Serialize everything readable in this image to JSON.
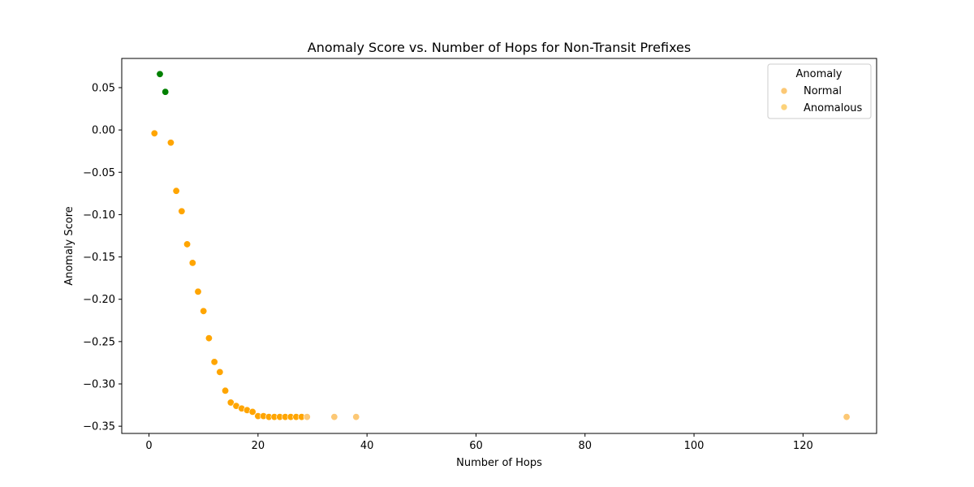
{
  "chart_data": {
    "type": "scatter",
    "title": "Anomaly Score vs. Number of Hops for Non-Transit Prefixes",
    "xlabel": "Number of Hops",
    "ylabel": "Anomaly Score",
    "xlim": [
      -5,
      133.5
    ],
    "ylim": [
      -0.3585,
      0.0845
    ],
    "x_ticks": [
      0,
      20,
      40,
      60,
      80,
      100,
      120
    ],
    "y_ticks": [
      0.05,
      0.0,
      -0.05,
      -0.1,
      -0.15,
      -0.2,
      -0.25,
      -0.3,
      -0.35
    ],
    "x_tick_labels": [
      "0",
      "20",
      "40",
      "60",
      "80",
      "100",
      "120"
    ],
    "y_tick_labels": [
      "0.05",
      "0.00",
      "−0.05",
      "−0.10",
      "−0.15",
      "−0.20",
      "−0.25",
      "−0.30",
      "−0.35"
    ],
    "grid": false,
    "legend": {
      "title": "Anomaly",
      "position": "top-right",
      "entries": [
        {
          "label": "Normal",
          "color": "#fcc875"
        },
        {
          "label": "Anomalous",
          "color": "#fcd27a"
        }
      ]
    },
    "series": [
      {
        "color": "#008000",
        "points": [
          [
            2,
            0.066
          ],
          [
            3,
            0.045
          ]
        ]
      },
      {
        "color": "#ffa500",
        "points": [
          [
            1,
            -0.004
          ],
          [
            4,
            -0.015
          ],
          [
            5,
            -0.072
          ],
          [
            6,
            -0.096
          ],
          [
            7,
            -0.135
          ],
          [
            8,
            -0.157
          ],
          [
            9,
            -0.191
          ],
          [
            10,
            -0.214
          ],
          [
            11,
            -0.246
          ],
          [
            12,
            -0.274
          ],
          [
            13,
            -0.286
          ],
          [
            14,
            -0.308
          ],
          [
            15,
            -0.322
          ],
          [
            16,
            -0.326
          ],
          [
            17,
            -0.329
          ],
          [
            18,
            -0.331
          ],
          [
            19,
            -0.333
          ],
          [
            20,
            -0.338
          ],
          [
            21,
            -0.338
          ],
          [
            22,
            -0.339
          ],
          [
            23,
            -0.339
          ],
          [
            24,
            -0.339
          ],
          [
            25,
            -0.339
          ],
          [
            26,
            -0.339
          ],
          [
            27,
            -0.339
          ],
          [
            28,
            -0.339
          ]
        ]
      },
      {
        "color": "#fcc875",
        "points": [
          [
            29,
            -0.339
          ],
          [
            34,
            -0.339
          ],
          [
            38,
            -0.339
          ],
          [
            128,
            -0.339
          ]
        ]
      }
    ]
  }
}
